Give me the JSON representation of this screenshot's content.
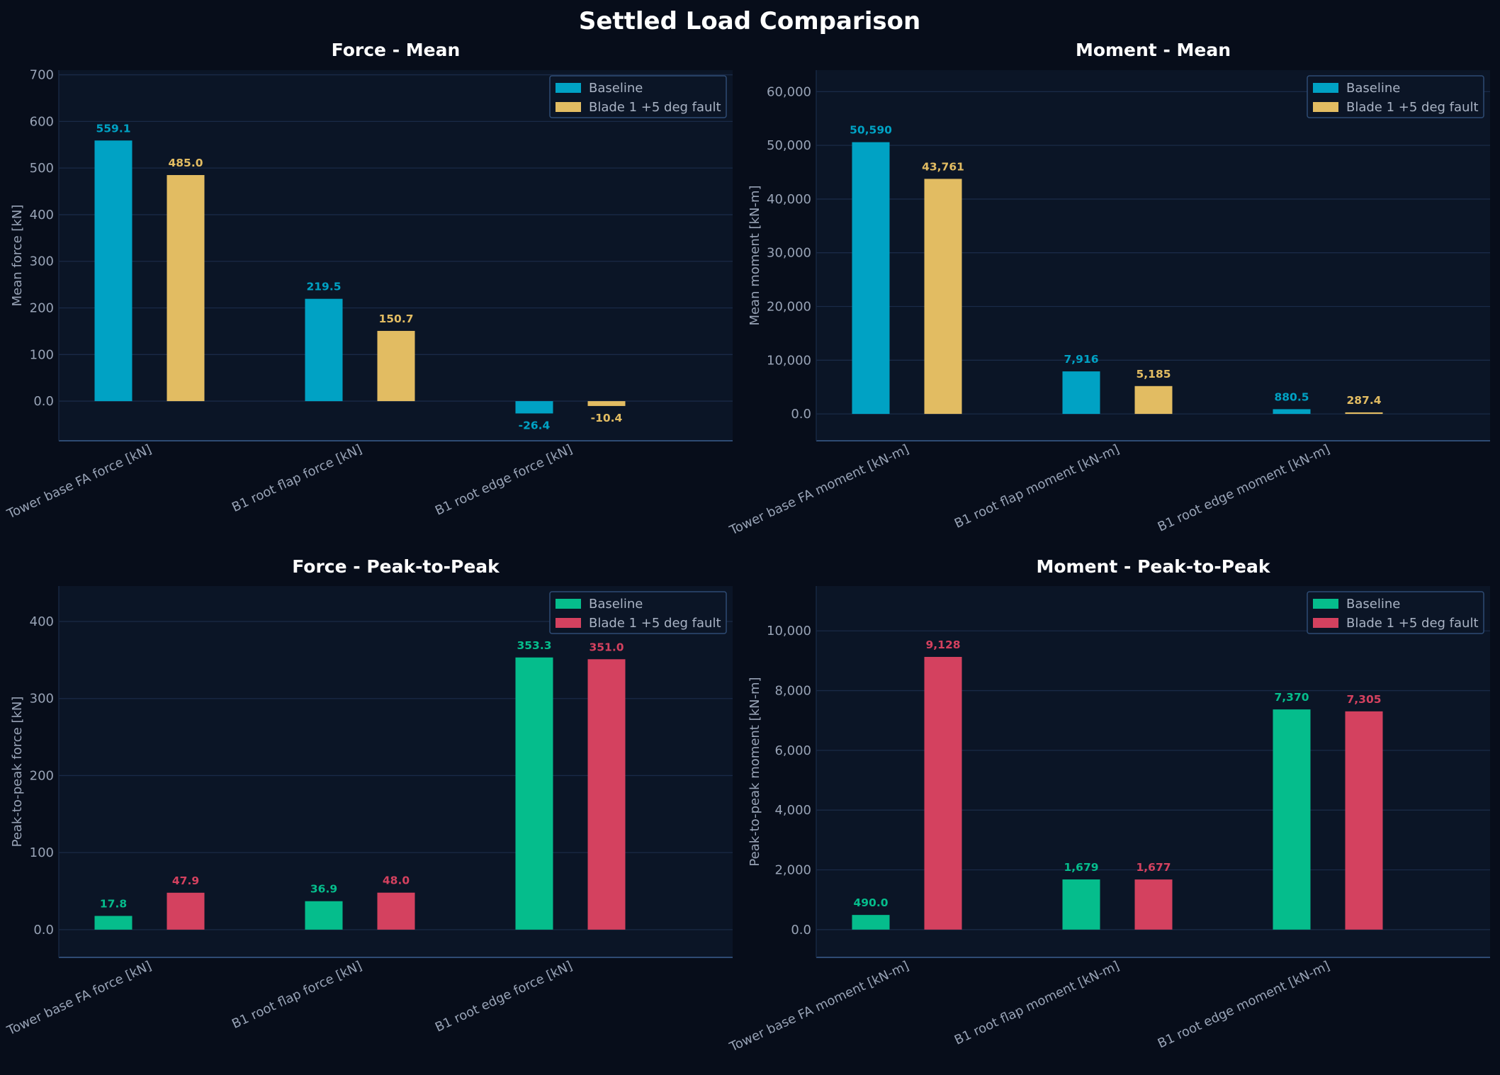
{
  "title": "Settled Load Comparison",
  "colors": {
    "baseline_mean": "#00a2c4",
    "fault_mean": "#e2bc62",
    "baseline_p2p": "#05bd8c",
    "fault_p2p": "#d4415f"
  },
  "chart_data": [
    {
      "type": "bar",
      "title": "Force - Mean",
      "xlabel": "",
      "ylabel": "Mean force [kN]",
      "categories": [
        "Tower base FA force [kN]",
        "B1 root flap force [kN]",
        "B1 root edge force [kN]"
      ],
      "series": [
        {
          "name": "Baseline",
          "values": [
            559.1,
            219.5,
            -26.4
          ],
          "labels": [
            "559.1",
            "219.5",
            "-26.4"
          ],
          "color": "#00a2c4"
        },
        {
          "name": "Blade 1 +5 deg fault",
          "values": [
            485.0,
            150.7,
            -10.4
          ],
          "labels": [
            "485.0",
            "150.7",
            "-10.4"
          ],
          "color": "#e2bc62"
        }
      ],
      "ylim": [
        -85,
        710
      ],
      "yticks": [
        0,
        100,
        200,
        300,
        400,
        500,
        600,
        700
      ],
      "yticklabels": [
        "0.0",
        "100",
        "200",
        "300",
        "400",
        "500",
        "600",
        "700"
      ],
      "grid": true,
      "legend": "top-right"
    },
    {
      "type": "bar",
      "title": "Moment - Mean",
      "xlabel": "",
      "ylabel": "Mean moment [kN-m]",
      "categories": [
        "Tower base FA moment [kN-m]",
        "B1 root flap moment [kN-m]",
        "B1 root edge moment [kN-m]"
      ],
      "series": [
        {
          "name": "Baseline",
          "values": [
            50590,
            7916,
            880.5
          ],
          "labels": [
            "50,590",
            "7,916",
            "880.5"
          ],
          "color": "#00a2c4"
        },
        {
          "name": "Blade 1 +5 deg fault",
          "values": [
            43761,
            5185,
            287.4
          ],
          "labels": [
            "43,761",
            "5,185",
            "287.4"
          ],
          "color": "#e2bc62"
        }
      ],
      "ylim": [
        -5000,
        64000
      ],
      "yticks": [
        0,
        10000,
        20000,
        30000,
        40000,
        50000,
        60000
      ],
      "yticklabels": [
        "0.0",
        "10,000",
        "20,000",
        "30,000",
        "40,000",
        "50,000",
        "60,000"
      ],
      "grid": true,
      "legend": "top-right"
    },
    {
      "type": "bar",
      "title": "Force - Peak-to-Peak",
      "xlabel": "",
      "ylabel": "Peak-to-peak force [kN]",
      "categories": [
        "Tower base FA force [kN]",
        "B1 root flap force [kN]",
        "B1 root edge force [kN]"
      ],
      "series": [
        {
          "name": "Baseline",
          "values": [
            17.8,
            36.9,
            353.3
          ],
          "labels": [
            "17.8",
            "36.9",
            "353.3"
          ],
          "color": "#05bd8c"
        },
        {
          "name": "Blade 1 +5 deg fault",
          "values": [
            47.9,
            48.0,
            351.0
          ],
          "labels": [
            "47.9",
            "48.0",
            "351.0"
          ],
          "color": "#d4415f"
        }
      ],
      "ylim": [
        -36,
        446
      ],
      "yticks": [
        0,
        100,
        200,
        300,
        400
      ],
      "yticklabels": [
        "0.0",
        "100",
        "200",
        "300",
        "400"
      ],
      "grid": true,
      "legend": "top-right"
    },
    {
      "type": "bar",
      "title": "Moment - Peak-to-Peak",
      "xlabel": "",
      "ylabel": "Peak-to-peak moment [kN-m]",
      "categories": [
        "Tower base FA moment [kN-m]",
        "B1 root flap moment [kN-m]",
        "B1 root edge moment [kN-m]"
      ],
      "series": [
        {
          "name": "Baseline",
          "values": [
            490.0,
            1679,
            7370
          ],
          "labels": [
            "490.0",
            "1,679",
            "7,370"
          ],
          "color": "#05bd8c"
        },
        {
          "name": "Blade 1 +5 deg fault",
          "values": [
            9128,
            1677,
            7305
          ],
          "labels": [
            "9,128",
            "1,677",
            "7,305"
          ],
          "color": "#d4415f"
        }
      ],
      "ylim": [
        -930,
        11500
      ],
      "yticks": [
        0,
        2000,
        4000,
        6000,
        8000,
        10000
      ],
      "yticklabels": [
        "0.0",
        "2,000",
        "4,000",
        "6,000",
        "8,000",
        "10,000"
      ],
      "grid": true,
      "legend": "top-right"
    }
  ]
}
